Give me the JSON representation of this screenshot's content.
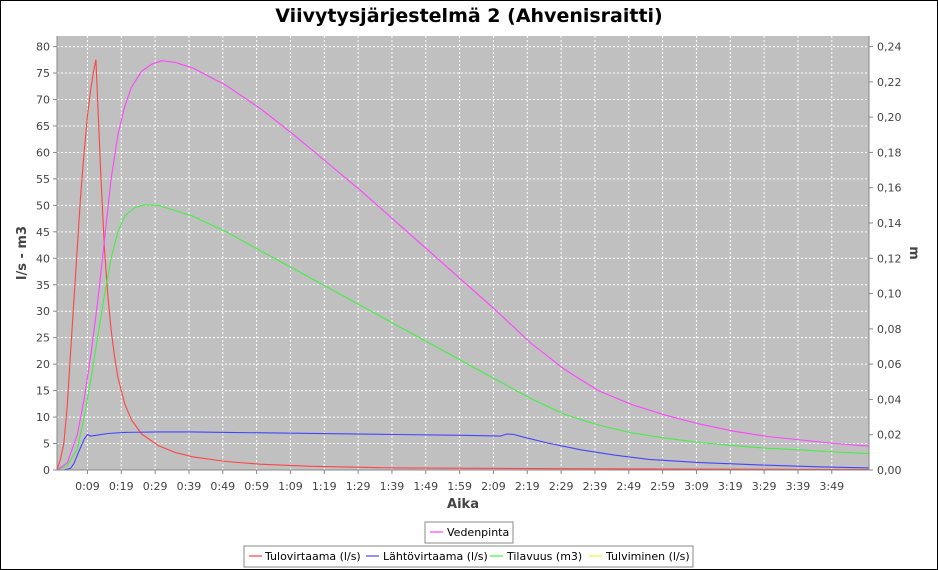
{
  "chart_data": {
    "type": "line",
    "title": "Viivytysjärjestelmä 2 (Ahvenisraitti)",
    "xlabel": "Aika",
    "ylabel_left": "l/s - m3",
    "ylabel_right": "m",
    "xlim_minutes": [
      0,
      240
    ],
    "ylim_left": [
      0,
      82
    ],
    "ylim_right": [
      0,
      0.246
    ],
    "x_ticks": [
      {
        "min": 9,
        "label": "0:09"
      },
      {
        "min": 19,
        "label": "0:19"
      },
      {
        "min": 29,
        "label": "0:29"
      },
      {
        "min": 39,
        "label": "0:39"
      },
      {
        "min": 49,
        "label": "0:49"
      },
      {
        "min": 59,
        "label": "0:59"
      },
      {
        "min": 69,
        "label": "1:09"
      },
      {
        "min": 79,
        "label": "1:19"
      },
      {
        "min": 89,
        "label": "1:29"
      },
      {
        "min": 99,
        "label": "1:39"
      },
      {
        "min": 109,
        "label": "1:49"
      },
      {
        "min": 119,
        "label": "1:59"
      },
      {
        "min": 129,
        "label": "2:09"
      },
      {
        "min": 139,
        "label": "2:19"
      },
      {
        "min": 149,
        "label": "2:29"
      },
      {
        "min": 159,
        "label": "2:39"
      },
      {
        "min": 169,
        "label": "2:49"
      },
      {
        "min": 179,
        "label": "2:59"
      },
      {
        "min": 189,
        "label": "3:09"
      },
      {
        "min": 199,
        "label": "3:19"
      },
      {
        "min": 209,
        "label": "3:29"
      },
      {
        "min": 219,
        "label": "3:39"
      },
      {
        "min": 229,
        "label": "3:49"
      }
    ],
    "y_ticks_left": [
      {
        "v": 0,
        "label": "0"
      },
      {
        "v": 5,
        "label": "5"
      },
      {
        "v": 10,
        "label": "10"
      },
      {
        "v": 15,
        "label": "15"
      },
      {
        "v": 20,
        "label": "20"
      },
      {
        "v": 25,
        "label": "25"
      },
      {
        "v": 30,
        "label": "30"
      },
      {
        "v": 35,
        "label": "35"
      },
      {
        "v": 40,
        "label": "40"
      },
      {
        "v": 45,
        "label": "45"
      },
      {
        "v": 50,
        "label": "50"
      },
      {
        "v": 55,
        "label": "55"
      },
      {
        "v": 60,
        "label": "60"
      },
      {
        "v": 65,
        "label": "65"
      },
      {
        "v": 70,
        "label": "70"
      },
      {
        "v": 75,
        "label": "75"
      },
      {
        "v": 80,
        "label": "80"
      }
    ],
    "y_ticks_right": [
      {
        "v": 0,
        "label": "0,00"
      },
      {
        "v": 0.02,
        "label": "0,02"
      },
      {
        "v": 0.04,
        "label": "0,04"
      },
      {
        "v": 0.06,
        "label": "0,06"
      },
      {
        "v": 0.08,
        "label": "0,08"
      },
      {
        "v": 0.1,
        "label": "0,10"
      },
      {
        "v": 0.12,
        "label": "0,12"
      },
      {
        "v": 0.14,
        "label": "0,14"
      },
      {
        "v": 0.16,
        "label": "0,16"
      },
      {
        "v": 0.18,
        "label": "0,18"
      },
      {
        "v": 0.2,
        "label": "0,20"
      },
      {
        "v": 0.22,
        "label": "0,22"
      },
      {
        "v": 0.24,
        "label": "0,24"
      }
    ],
    "series": [
      {
        "name": "Tulovirtaama (l/s)",
        "axis": "left",
        "color": "#ff4444",
        "points": [
          [
            0,
            0
          ],
          [
            1,
            2
          ],
          [
            2,
            5
          ],
          [
            3,
            12
          ],
          [
            4,
            22
          ],
          [
            5,
            32
          ],
          [
            6,
            42
          ],
          [
            7,
            52
          ],
          [
            8,
            60
          ],
          [
            9,
            67
          ],
          [
            10,
            72
          ],
          [
            11,
            76
          ],
          [
            11.5,
            77.5
          ],
          [
            12,
            70
          ],
          [
            13,
            55
          ],
          [
            14,
            42
          ],
          [
            15,
            33
          ],
          [
            16,
            26.5
          ],
          [
            17,
            21.5
          ],
          [
            18,
            17.5
          ],
          [
            20,
            12.5
          ],
          [
            22,
            9.5
          ],
          [
            25,
            6.8
          ],
          [
            30,
            4.6
          ],
          [
            35,
            3.3
          ],
          [
            40,
            2.5
          ],
          [
            50,
            1.6
          ],
          [
            60,
            1.1
          ],
          [
            75,
            0.7
          ],
          [
            100,
            0.4
          ],
          [
            150,
            0.25
          ],
          [
            200,
            0.15
          ],
          [
            240,
            0.1
          ]
        ]
      },
      {
        "name": "Lähtövirtaama (l/s)",
        "axis": "left",
        "color": "#4444ff",
        "points": [
          [
            0,
            0
          ],
          [
            2,
            0
          ],
          [
            4,
            0.3
          ],
          [
            5,
            1.2
          ],
          [
            6,
            2.8
          ],
          [
            7,
            4.3
          ],
          [
            8,
            5.8
          ],
          [
            9,
            6.7
          ],
          [
            10,
            6.4
          ],
          [
            12,
            6.6
          ],
          [
            15,
            6.9
          ],
          [
            20,
            7.1
          ],
          [
            30,
            7.2
          ],
          [
            40,
            7.2
          ],
          [
            50,
            7.1
          ],
          [
            70,
            6.95
          ],
          [
            100,
            6.7
          ],
          [
            120,
            6.55
          ],
          [
            131,
            6.4
          ],
          [
            133,
            6.8
          ],
          [
            135,
            6.7
          ],
          [
            138,
            6.2
          ],
          [
            145,
            5.1
          ],
          [
            155,
            3.8
          ],
          [
            165,
            2.8
          ],
          [
            175,
            2.0
          ],
          [
            190,
            1.4
          ],
          [
            210,
            0.9
          ],
          [
            225,
            0.6
          ],
          [
            240,
            0.4
          ]
        ]
      },
      {
        "name": "Tilavuus (m3)",
        "axis": "left",
        "color": "#44ee44",
        "points": [
          [
            0,
            0
          ],
          [
            3,
            0.8
          ],
          [
            6,
            4
          ],
          [
            8,
            10
          ],
          [
            10,
            17
          ],
          [
            12,
            25
          ],
          [
            14,
            33
          ],
          [
            16,
            40
          ],
          [
            18,
            45
          ],
          [
            20,
            48
          ],
          [
            23,
            49.6
          ],
          [
            26,
            50.1
          ],
          [
            30,
            50
          ],
          [
            40,
            48
          ],
          [
            50,
            45
          ],
          [
            60,
            41.5
          ],
          [
            70,
            38
          ],
          [
            80,
            34.5
          ],
          [
            90,
            31
          ],
          [
            100,
            27.5
          ],
          [
            110,
            24
          ],
          [
            120,
            20.5
          ],
          [
            130,
            17
          ],
          [
            140,
            13.5
          ],
          [
            150,
            10.5
          ],
          [
            160,
            8.5
          ],
          [
            170,
            7
          ],
          [
            180,
            6
          ],
          [
            190,
            5.2
          ],
          [
            200,
            4.6
          ],
          [
            210,
            4.1
          ],
          [
            220,
            3.8
          ],
          [
            230,
            3.4
          ],
          [
            240,
            3.1
          ]
        ]
      },
      {
        "name": "Tulviminen (l/s)",
        "axis": "left",
        "color": "#eeee44",
        "points": [
          [
            0,
            0
          ],
          [
            240,
            0
          ]
        ]
      },
      {
        "name": "Vedenpinta",
        "axis": "right",
        "color": "#ff44ff",
        "points": [
          [
            0,
            0
          ],
          [
            3,
            0.004
          ],
          [
            6,
            0.02
          ],
          [
            8,
            0.04
          ],
          [
            10,
            0.065
          ],
          [
            12,
            0.095
          ],
          [
            14,
            0.13
          ],
          [
            16,
            0.165
          ],
          [
            18,
            0.19
          ],
          [
            20,
            0.206
          ],
          [
            22,
            0.217
          ],
          [
            25,
            0.226
          ],
          [
            28,
            0.23
          ],
          [
            31,
            0.232
          ],
          [
            35,
            0.231
          ],
          [
            40,
            0.228
          ],
          [
            50,
            0.218
          ],
          [
            60,
            0.205
          ],
          [
            70,
            0.19
          ],
          [
            80,
            0.174
          ],
          [
            90,
            0.158
          ],
          [
            100,
            0.141
          ],
          [
            110,
            0.124
          ],
          [
            120,
            0.107
          ],
          [
            130,
            0.09
          ],
          [
            140,
            0.072
          ],
          [
            150,
            0.057
          ],
          [
            160,
            0.045
          ],
          [
            170,
            0.037
          ],
          [
            180,
            0.031
          ],
          [
            190,
            0.026
          ],
          [
            200,
            0.022
          ],
          [
            210,
            0.019
          ],
          [
            220,
            0.017
          ],
          [
            230,
            0.015
          ],
          [
            240,
            0.0135
          ]
        ]
      }
    ],
    "legend_top": [
      "Vedenpinta"
    ],
    "legend_bottom": [
      "Tulovirtaama (l/s)",
      "Lähtövirtaama (l/s)",
      "Tilavuus (m3)",
      "Tulviminen (l/s)"
    ]
  }
}
